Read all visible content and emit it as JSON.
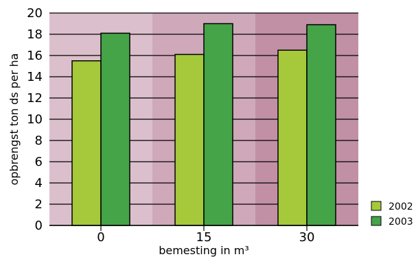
{
  "chart_data": {
    "type": "bar",
    "categories": [
      "0",
      "15",
      "30"
    ],
    "series": [
      {
        "name": "2002",
        "values": [
          15.5,
          16.1,
          16.5
        ],
        "color": "#a5c93a"
      },
      {
        "name": "2003",
        "values": [
          18.1,
          19.0,
          18.9
        ],
        "color": "#45a348"
      }
    ],
    "title": "",
    "xlabel": "bemesting in m³",
    "ylabel": "opbrengst ton ds per ha",
    "ylim": [
      0,
      20
    ],
    "yticks": [
      "0",
      "2",
      "4",
      "6",
      "8",
      "10",
      "12",
      "14",
      "16",
      "18",
      "20"
    ],
    "grid": true,
    "legend_position": "bottom-right",
    "band_colors": [
      "#dcbfcc",
      "#cfa8ba",
      "#c190a5"
    ]
  }
}
